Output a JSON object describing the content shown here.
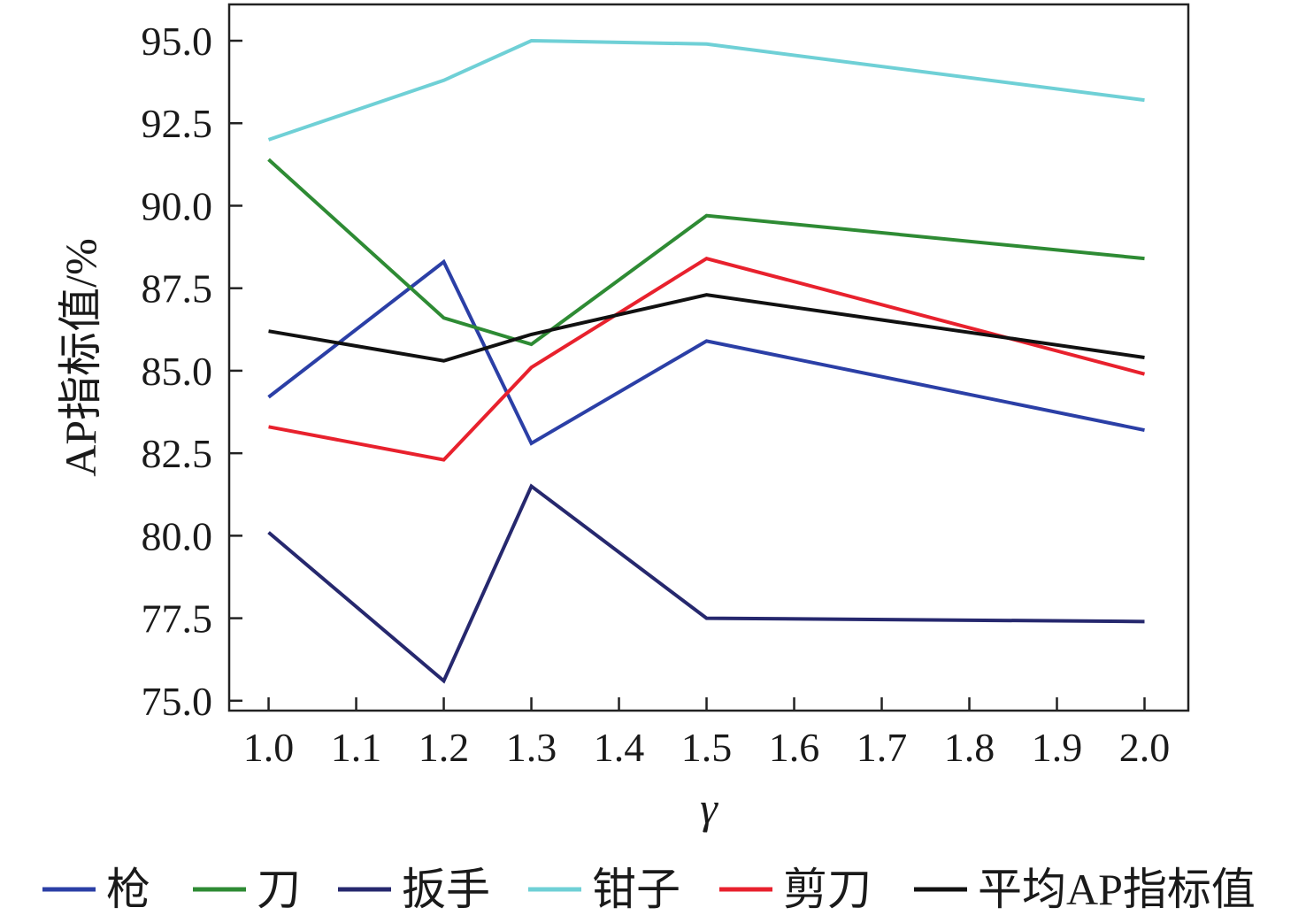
{
  "chart_data": {
    "type": "line",
    "x": [
      1.0,
      1.2,
      1.3,
      1.5,
      2.0
    ],
    "xticks": [
      "1.0",
      "1.1",
      "1.2",
      "1.3",
      "1.4",
      "1.5",
      "1.6",
      "1.7",
      "1.8",
      "1.9",
      "2.0"
    ],
    "yticks": [
      "75.0",
      "77.5",
      "80.0",
      "82.5",
      "85.0",
      "87.5",
      "90.0",
      "92.5",
      "95.0"
    ],
    "xlim": [
      0.955,
      2.05
    ],
    "ylim": [
      74.7,
      96.1
    ],
    "xlabel": "γ",
    "ylabel": "AP指标值/%",
    "legend_position": "bottom",
    "grid": false,
    "series": [
      {
        "name": "枪",
        "color": "#2b3fa6",
        "values": [
          84.2,
          88.3,
          82.8,
          85.9,
          83.2
        ]
      },
      {
        "name": "刀",
        "color": "#2e8b34",
        "values": [
          91.4,
          86.6,
          85.8,
          89.7,
          88.4
        ]
      },
      {
        "name": "扳手",
        "color": "#26286e",
        "values": [
          80.1,
          75.6,
          81.5,
          77.5,
          77.4
        ]
      },
      {
        "name": "钳子",
        "color": "#6fd0d6",
        "values": [
          92.0,
          93.8,
          95.0,
          94.9,
          93.2
        ]
      },
      {
        "name": "剪刀",
        "color": "#e8212d",
        "values": [
          83.3,
          82.3,
          85.1,
          88.4,
          84.9
        ]
      },
      {
        "name": "平均AP指标值",
        "color": "#111111",
        "values": [
          86.2,
          85.3,
          86.1,
          87.3,
          85.4
        ]
      }
    ]
  }
}
